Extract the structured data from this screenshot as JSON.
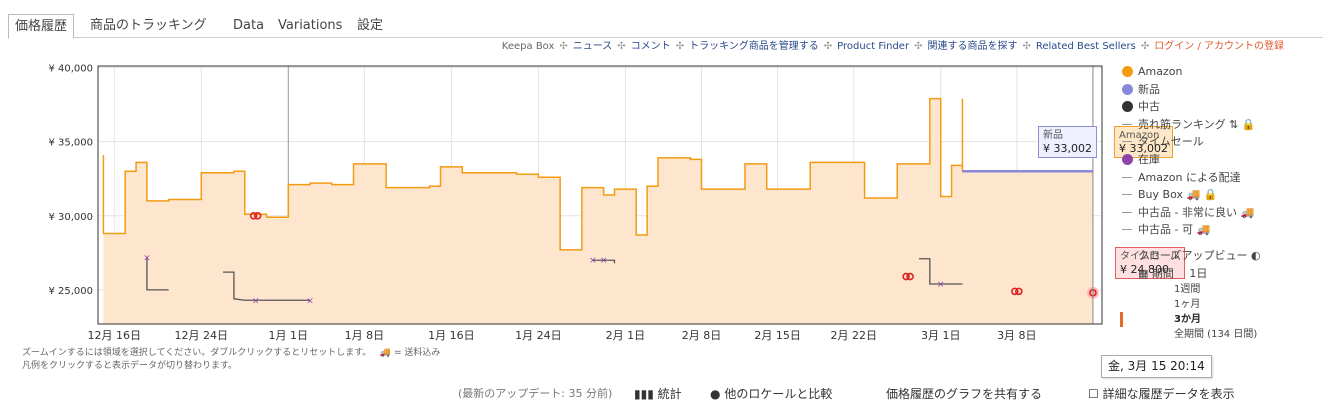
{
  "tabs": [
    {
      "label": "価格履歴",
      "active": true
    },
    {
      "label": "商品のトラッキング"
    },
    {
      "label": "Data"
    },
    {
      "label": "Variations"
    },
    {
      "label": "設定"
    }
  ],
  "toplinks": {
    "keepa_box": "Keepa Box",
    "news": "ニュース",
    "comments": "コメント",
    "manage": "トラッキング商品を管理する",
    "finder": "Product Finder",
    "related": "関連する商品を探す",
    "best_sellers": "Related Best Sellers",
    "login": "ログイン / アカウントの登録"
  },
  "chart_data": {
    "type": "line",
    "title": "",
    "xlabel": "",
    "ylabel": "",
    "ylim": [
      22700,
      40100
    ],
    "y_ticks": [
      "¥ 40,000",
      "¥ 35,000",
      "¥ 30,000",
      "¥ 25,000"
    ],
    "x_ticks": [
      "12月 16日",
      "12月 24日",
      "1月 1日",
      "1月 8日",
      "1月 16日",
      "1月 24日",
      "2月 1日",
      "2月 8日",
      "2月 15日",
      "2月 22日",
      "3月 1日",
      "3月 8日"
    ],
    "series": [
      {
        "name": "Amazon",
        "color": "#f39c12",
        "points": [
          [
            "2023-12-15",
            34100
          ],
          [
            "2023-12-15",
            28800
          ],
          [
            "2023-12-17",
            33000
          ],
          [
            "2023-12-18",
            33600
          ],
          [
            "2023-12-19",
            31000
          ],
          [
            "2023-12-21",
            31100
          ],
          [
            "2023-12-24",
            32900
          ],
          [
            "2023-12-27",
            33000
          ],
          [
            "2023-12-28",
            30100
          ],
          [
            "2023-12-30",
            29900
          ],
          [
            "2024-01-01",
            32100
          ],
          [
            "2024-01-03",
            32200
          ],
          [
            "2024-01-05",
            32100
          ],
          [
            "2024-01-07",
            33500
          ],
          [
            "2024-01-10",
            31900
          ],
          [
            "2024-01-14",
            32000
          ],
          [
            "2024-01-15",
            33300
          ],
          [
            "2024-01-17",
            32900
          ],
          [
            "2024-01-22",
            32800
          ],
          [
            "2024-01-24",
            32600
          ],
          [
            "2024-01-26",
            27700
          ],
          [
            "2024-01-28",
            31900
          ],
          [
            "2024-01-30",
            31400
          ],
          [
            "2024-01-31",
            31800
          ],
          [
            "2024-02-02",
            28700
          ],
          [
            "2024-02-03",
            32000
          ],
          [
            "2024-02-04",
            33900
          ],
          [
            "2024-02-07",
            33800
          ],
          [
            "2024-02-08",
            31800
          ],
          [
            "2024-02-12",
            33500
          ],
          [
            "2024-02-14",
            31800
          ],
          [
            "2024-02-18",
            33600
          ],
          [
            "2024-02-23",
            31200
          ],
          [
            "2024-02-26",
            33500
          ],
          [
            "2024-02-29",
            37900
          ],
          [
            "2024-03-01",
            31300
          ],
          [
            "2024-03-02",
            33400
          ],
          [
            "2024-03-03",
            37900
          ],
          [
            "2024-03-03",
            33000
          ]
        ]
      },
      {
        "name": "新品",
        "color": "#8888dd",
        "points": [
          [
            "2024-03-03",
            33002
          ],
          [
            "2024-03-15",
            33002
          ]
        ]
      },
      {
        "name": "タイムセール",
        "color": "#dd2222",
        "points": [
          [
            "2023-12-29",
            30000
          ],
          [
            "2024-02-27",
            25900
          ],
          [
            "2024-03-08",
            24900
          ],
          [
            "2024-03-15",
            24800
          ]
        ]
      },
      {
        "name": "売れ筋ランキング",
        "color": "#555555",
        "segments": [
          [
            [
              "2023-12-19",
              27200
            ],
            [
              "2023-12-19",
              25000
            ],
            [
              "2023-12-21",
              25000
            ]
          ],
          [
            [
              "2023-12-26",
              26200
            ],
            [
              "2023-12-27",
              26200
            ],
            [
              "2023-12-27",
              24400
            ],
            [
              "2023-12-28",
              24300
            ],
            [
              "2024-01-01",
              24300
            ],
            [
              "2024-01-03",
              24300
            ]
          ],
          [
            [
              "2024-01-29",
              27000
            ],
            [
              "2024-01-31",
              27000
            ],
            [
              "2024-01-31",
              26800
            ]
          ],
          [
            [
              "2024-02-28",
              27100
            ],
            [
              "2024-02-29",
              27100
            ],
            [
              "2024-02-29",
              25400
            ],
            [
              "2024-03-03",
              25400
            ]
          ]
        ],
        "markers": [
          [
            "2023-12-19",
            27200
          ],
          [
            "2023-12-29",
            24300
          ],
          [
            "2024-01-03",
            24300
          ],
          [
            "2024-01-29",
            27000
          ],
          [
            "2024-01-30",
            27000
          ],
          [
            "2024-03-01",
            25400
          ]
        ]
      }
    ],
    "grid": true,
    "legend_position": "right"
  },
  "legend": {
    "items": [
      {
        "label": "Amazon",
        "color": "#f39c12",
        "kind": "dot"
      },
      {
        "label": "新品",
        "color": "#8888dd",
        "kind": "dot"
      },
      {
        "label": "中古",
        "color": "#333333",
        "kind": "dot"
      },
      {
        "label": "売れ筋ランキング ⇅ 🔒",
        "kind": "dash"
      },
      {
        "label": "タイムセール",
        "kind": "dash"
      },
      {
        "label": "在庫",
        "color": "#8e44ad",
        "kind": "dot"
      },
      {
        "label": "Amazon による配達",
        "kind": "dash"
      },
      {
        "label": "Buy Box 🚚 🔒",
        "kind": "dash"
      },
      {
        "label": "中古品 - 非常に良い 🚚",
        "kind": "dash"
      },
      {
        "label": "中古品 - 可 🚚",
        "kind": "dash"
      }
    ],
    "close_up": "クローズアップビュー",
    "period_label": "期間",
    "ranges": [
      "1日",
      "1週間",
      "1ヶ月",
      "3か月",
      "全期間 (134 日間)"
    ],
    "active_range": "3か月"
  },
  "tooltips": {
    "new_label": "新品",
    "new_value": "¥ 33,002",
    "amazon_label": "Amazon",
    "amazon_value": "¥ 33,002",
    "sale_label": "タイムセール",
    "sale_value": "¥ 24,800",
    "date": "金, 3月 15 20:14"
  },
  "hints": {
    "line1": "ズームインするには領域を選択してください。ダブルクリックするとリセットします。",
    "shipping_note": "= 送料込み",
    "line2": "凡例をクリックすると表示データが切り替わります。"
  },
  "bottom": {
    "last_update": "(最新のアップデート: 35 分前)",
    "stats": "統計",
    "compare": "他のロケールと比較",
    "share": "価格履歴のグラフを共有する",
    "details": "詳細な履歴データを表示"
  }
}
